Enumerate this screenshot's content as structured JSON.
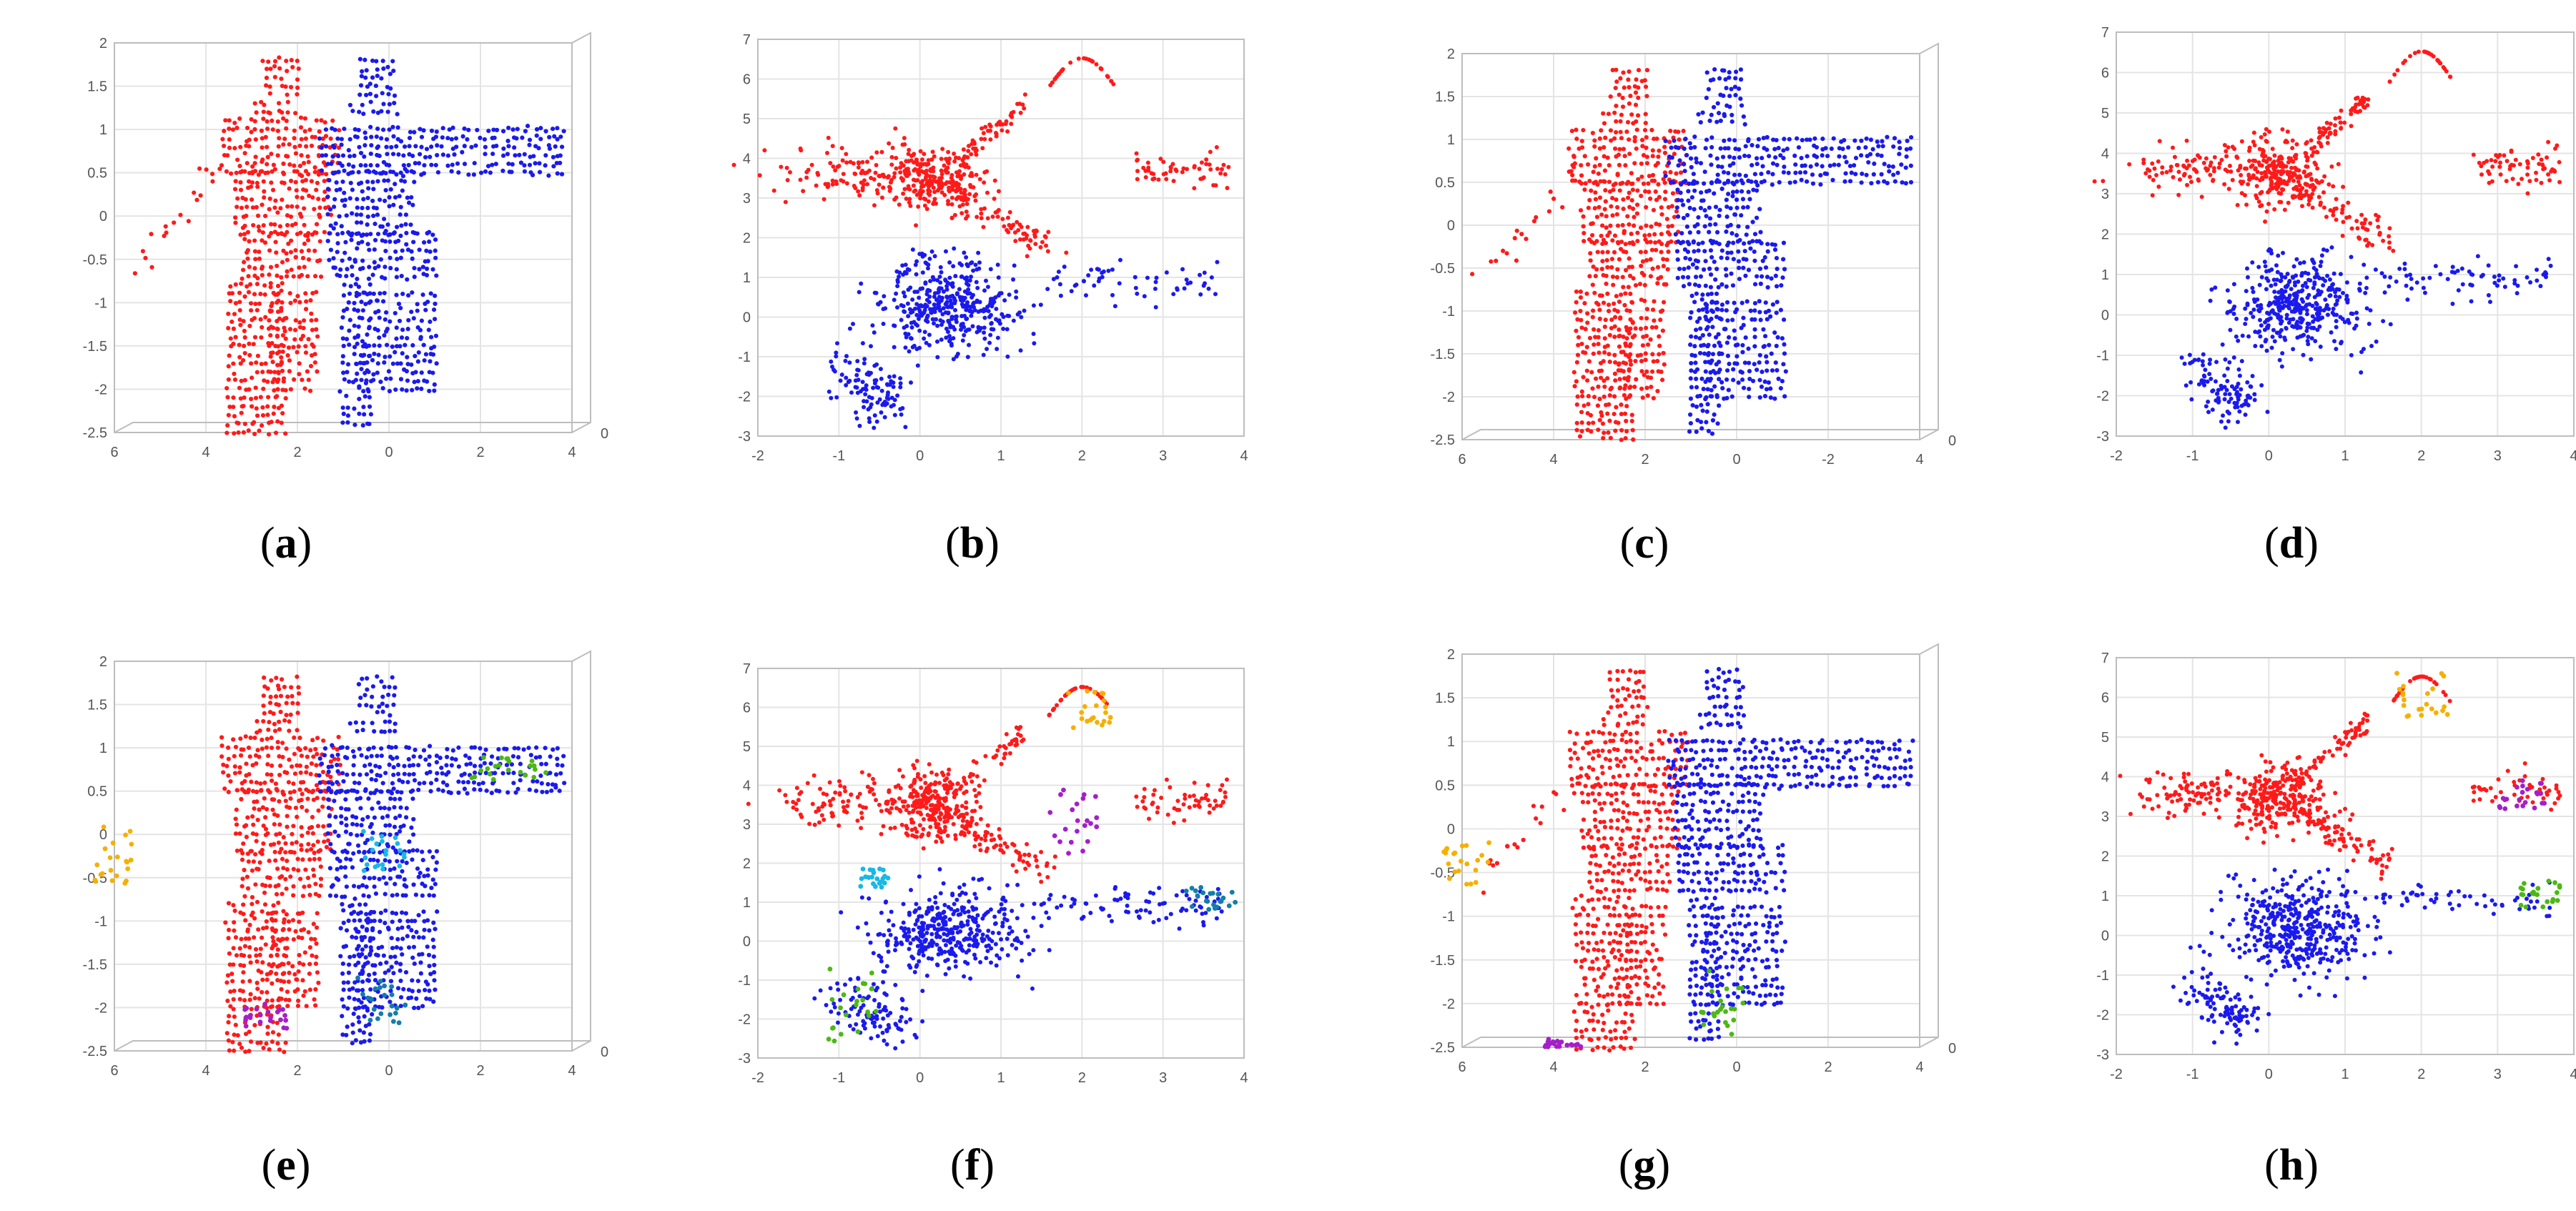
{
  "figure": {
    "panels": [
      {
        "label_open": "(",
        "letter": "a",
        "label_close": ")"
      },
      {
        "label_open": "(",
        "letter": "b",
        "label_close": ")"
      },
      {
        "label_open": "(",
        "letter": "c",
        "label_close": ")"
      },
      {
        "label_open": "(",
        "letter": "d",
        "label_close": ")"
      },
      {
        "label_open": "(",
        "letter": "e",
        "label_close": ")"
      },
      {
        "label_open": "(",
        "letter": "f",
        "label_close": ")"
      },
      {
        "label_open": "(",
        "letter": "g",
        "label_close": ")"
      },
      {
        "label_open": "(",
        "letter": "h",
        "label_close": ")"
      }
    ]
  },
  "colors": {
    "red": "#ff1a1a",
    "blue": "#1a1aee",
    "orange": "#f5b000",
    "green": "#4cb814",
    "cyan": "#19b8e6",
    "teal": "#137ea8",
    "purple": "#a51fc9"
  },
  "chart_data": [
    {
      "type": "scatter",
      "view": "3d-front",
      "xlabel": "",
      "ylabel": "",
      "x_ticks": [
        "6",
        "4",
        "2",
        "0",
        "2",
        "4"
      ],
      "x_range": [
        6,
        -4
      ],
      "y_ticks": [
        "2",
        "1.5",
        "1",
        "0.5",
        "0",
        "-0.5",
        "-1",
        "-1.5",
        "-2",
        "-2.5"
      ],
      "y_range": [
        -2.5,
        2
      ],
      "z_ticks": [
        "0"
      ],
      "series": [
        {
          "color": "red",
          "shape": "person-left"
        },
        {
          "color": "blue",
          "shape": "person-right"
        }
      ],
      "clusters": []
    },
    {
      "type": "scatter",
      "view": "2d-top",
      "xlabel": "",
      "ylabel": "",
      "x_ticks": [
        "-2",
        "-1",
        "0",
        "1",
        "2",
        "3",
        "4"
      ],
      "x_range": [
        -2.7,
        4
      ],
      "y_ticks": [
        "7",
        "6",
        "5",
        "4",
        "3",
        "2",
        "1",
        "0",
        "-1",
        "-2",
        "-3"
      ],
      "y_range": [
        -3.3,
        7.2
      ],
      "series": [
        {
          "color": "red",
          "role": "upper-group"
        },
        {
          "color": "blue",
          "role": "lower-group"
        }
      ],
      "clusters": []
    },
    {
      "type": "scatter",
      "view": "3d-front",
      "xlabel": "",
      "ylabel": "",
      "x_ticks": [
        "6",
        "4",
        "2",
        "0",
        "-2",
        "4"
      ],
      "x_range": [
        6,
        -4
      ],
      "y_ticks": [
        "2",
        "1.5",
        "1",
        "0.5",
        "0",
        "-0.5",
        "-1",
        "-1.5",
        "-2",
        "-2.5"
      ],
      "y_range": [
        -2.5,
        2
      ],
      "z_ticks": [
        "0"
      ],
      "series": [
        {
          "color": "red",
          "shape": "person-left"
        },
        {
          "color": "blue",
          "shape": "person-right"
        }
      ],
      "clusters": []
    },
    {
      "type": "scatter",
      "view": "2d-top",
      "xlabel": "",
      "ylabel": "",
      "x_ticks": [
        "-2",
        "-1",
        "0",
        "1",
        "2",
        "3",
        "4"
      ],
      "x_range": [
        -2.7,
        4
      ],
      "y_ticks": [
        "7",
        "6",
        "5",
        "4",
        "3",
        "2",
        "1",
        "0",
        "-1",
        "-2",
        "-3"
      ],
      "y_range": [
        -3.3,
        7.2
      ],
      "series": [
        {
          "color": "red",
          "role": "upper-group"
        },
        {
          "color": "blue",
          "role": "lower-group"
        }
      ],
      "clusters": []
    },
    {
      "type": "scatter",
      "view": "3d-front",
      "xlabel": "",
      "ylabel": "",
      "x_ticks": [
        "6",
        "4",
        "2",
        "0",
        "2",
        "4"
      ],
      "x_range": [
        6,
        -4
      ],
      "y_ticks": [
        "2",
        "1.5",
        "1",
        "0.5",
        "0",
        "-0.5",
        "-1",
        "-1.5",
        "-2",
        "-2.5"
      ],
      "y_range": [
        -2.5,
        2
      ],
      "z_ticks": [
        "0"
      ],
      "series": [
        {
          "color": "red",
          "shape": "person-left"
        },
        {
          "color": "blue",
          "shape": "person-right"
        }
      ],
      "clusters": [
        {
          "color": "orange",
          "x": [
            6.5,
            5.6
          ],
          "y": [
            -0.62,
            0.1
          ]
        },
        {
          "color": "green",
          "x": [
            -1.7,
            -3.8
          ],
          "y": [
            0.62,
            0.9
          ]
        },
        {
          "color": "cyan",
          "x": [
            0.6,
            -0.4
          ],
          "y": [
            -0.45,
            0.05
          ]
        },
        {
          "color": "teal",
          "x": [
            0.7,
            -0.4
          ],
          "y": [
            -2.25,
            -1.65
          ]
        },
        {
          "color": "purple",
          "x": [
            3.2,
            1.7
          ],
          "y": [
            -2.25,
            -1.95
          ]
        }
      ]
    },
    {
      "type": "scatter",
      "view": "2d-top",
      "xlabel": "",
      "ylabel": "",
      "x_ticks": [
        "-2",
        "-1",
        "0",
        "1",
        "2",
        "3",
        "4"
      ],
      "x_range": [
        -2.7,
        4
      ],
      "y_ticks": [
        "7",
        "6",
        "5",
        "4",
        "3",
        "2",
        "1",
        "0",
        "-1",
        "-2",
        "-3"
      ],
      "y_range": [
        -3.3,
        7.2
      ],
      "series": [
        {
          "color": "red",
          "role": "upper-group"
        },
        {
          "color": "blue",
          "role": "lower-group"
        }
      ],
      "clusters": [
        {
          "color": "orange",
          "x": [
            1.4,
            2.2
          ],
          "y": [
            5.6,
            6.8
          ]
        },
        {
          "color": "green",
          "x": [
            -1.8,
            -1.0
          ],
          "y": [
            -3.0,
            -0.9
          ]
        },
        {
          "color": "cyan",
          "x": [
            -1.3,
            -0.9
          ],
          "y": [
            1.3,
            1.8
          ]
        },
        {
          "color": "teal",
          "x": [
            3.1,
            3.9
          ],
          "y": [
            0.6,
            1.3
          ]
        },
        {
          "color": "purple",
          "x": [
            1.3,
            2.0
          ],
          "y": [
            2.2,
            4.0
          ]
        }
      ]
    },
    {
      "type": "scatter",
      "view": "3d-front",
      "xlabel": "",
      "ylabel": "",
      "x_ticks": [
        "6",
        "4",
        "2",
        "0",
        "2",
        "4"
      ],
      "x_range": [
        6,
        -4
      ],
      "y_ticks": [
        "2",
        "1.5",
        "1",
        "0.5",
        "0",
        "-0.5",
        "-1",
        "-1.5",
        "-2",
        "-2.5"
      ],
      "y_range": [
        -2.5,
        2
      ],
      "z_ticks": [
        "0"
      ],
      "series": [
        {
          "color": "red",
          "shape": "person-left"
        },
        {
          "color": "blue",
          "shape": "person-right"
        }
      ],
      "clusters": [
        {
          "color": "orange",
          "x": [
            6.5,
            5.4
          ],
          "y": [
            -0.65,
            -0.15
          ]
        },
        {
          "color": "green",
          "x": [
            0.8,
            -0.2
          ],
          "y": [
            -2.35,
            -1.55
          ]
        },
        {
          "color": "purple",
          "x": [
            4.2,
            3.4
          ],
          "y": [
            -2.5,
            -2.4
          ]
        }
      ]
    },
    {
      "type": "scatter",
      "view": "2d-top",
      "xlabel": "",
      "ylabel": "",
      "x_ticks": [
        "-2",
        "-1",
        "0",
        "1",
        "2",
        "3",
        "4"
      ],
      "x_range": [
        -2.7,
        4
      ],
      "y_ticks": [
        "7",
        "6",
        "5",
        "4",
        "3",
        "2",
        "1",
        "0",
        "-1",
        "-2",
        "-3"
      ],
      "y_range": [
        -3.3,
        7.2
      ],
      "series": [
        {
          "color": "red",
          "role": "upper-group"
        },
        {
          "color": "blue",
          "role": "lower-group"
        }
      ],
      "clusters": [
        {
          "color": "orange",
          "x": [
            1.4,
            2.2
          ],
          "y": [
            5.6,
            6.8
          ]
        },
        {
          "color": "purple",
          "x": [
            2.9,
            3.6
          ],
          "y": [
            3.2,
            4.0
          ]
        },
        {
          "color": "green",
          "x": [
            3.2,
            3.8
          ],
          "y": [
            0.6,
            1.3
          ]
        }
      ]
    }
  ]
}
